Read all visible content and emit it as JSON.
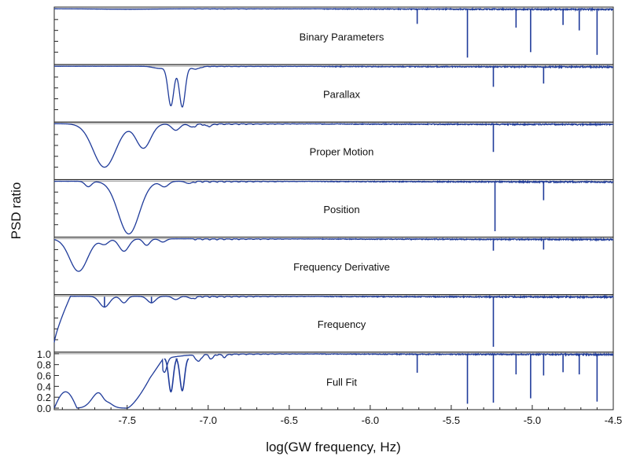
{
  "chart_data": {
    "type": "line",
    "xlabel": "log(GW frequency, Hz)",
    "ylabel": "PSD ratio",
    "xlim": [
      -7.95,
      -4.5
    ],
    "ylim": [
      0,
      1.0
    ],
    "x_ticks": [
      -7.5,
      -7.0,
      -6.5,
      -6.0,
      -5.5,
      -5.0,
      -4.5
    ],
    "x_tick_labels": [
      "-7.5",
      "-7.0",
      "-6.5",
      "-6.0",
      "-5.5",
      "-5.0",
      "-4.5"
    ],
    "y_ticks": [
      0.0,
      0.2,
      0.4,
      0.6,
      0.8,
      1.0
    ],
    "y_tick_labels": [
      "0.0",
      "0.2",
      "0.4",
      "0.6",
      "0.8",
      "1.0"
    ],
    "series_color": "#1f3b9a",
    "reference_line_color": "#999999",
    "reference_line_value": 1.0,
    "grid": false,
    "panels": [
      {
        "name": "Binary Parameters",
        "dips": [
          {
            "x": -5.71,
            "min": 0.72
          },
          {
            "x": -5.4,
            "min": 0.1
          },
          {
            "x": -5.1,
            "min": 0.65
          },
          {
            "x": -5.01,
            "min": 0.2
          },
          {
            "x": -4.81,
            "min": 0.7
          },
          {
            "x": -4.71,
            "min": 0.6
          },
          {
            "x": -4.6,
            "min": 0.15
          }
        ]
      },
      {
        "name": "Parallax",
        "dips": [
          {
            "x": -7.23,
            "min": 0.28
          },
          {
            "x": -7.16,
            "min": 0.25
          },
          {
            "x": -5.24,
            "min": 0.62
          },
          {
            "x": -4.93,
            "min": 0.68
          }
        ]
      },
      {
        "name": "Proper Motion",
        "dips": [
          {
            "x": -7.64,
            "min": 0.2
          },
          {
            "x": -7.4,
            "min": 0.55
          },
          {
            "x": -5.24,
            "min": 0.48
          }
        ]
      },
      {
        "name": "Position",
        "dips": [
          {
            "x": -7.49,
            "min": 0.03
          },
          {
            "x": -5.23,
            "min": 0.08
          },
          {
            "x": -4.93,
            "min": 0.65
          }
        ]
      },
      {
        "name": "Frequency Derivative",
        "dips": [
          {
            "x": -7.8,
            "min": 0.4
          },
          {
            "x": -7.52,
            "min": 0.77
          },
          {
            "x": -5.24,
            "min": 0.78
          },
          {
            "x": -4.93,
            "min": 0.8
          }
        ]
      },
      {
        "name": "Frequency",
        "dips": [
          {
            "x": -7.64,
            "min": 0.8
          },
          {
            "x": -7.35,
            "min": 0.88
          },
          {
            "x": -5.24,
            "min": 0.07
          }
        ],
        "low_freq_rise_start": 0.15
      },
      {
        "name": "Full Fit",
        "dips": [
          {
            "x": -7.23,
            "min": 0.3
          },
          {
            "x": -7.16,
            "min": 0.32
          },
          {
            "x": -5.71,
            "min": 0.65
          },
          {
            "x": -5.4,
            "min": 0.08
          },
          {
            "x": -5.24,
            "min": 0.1
          },
          {
            "x": -5.1,
            "min": 0.62
          },
          {
            "x": -5.01,
            "min": 0.18
          },
          {
            "x": -4.93,
            "min": 0.6
          },
          {
            "x": -4.81,
            "min": 0.66
          },
          {
            "x": -4.71,
            "min": 0.62
          },
          {
            "x": -4.6,
            "min": 0.12
          }
        ],
        "low_freq_bumps": [
          {
            "x": -7.88,
            "peak": 0.3
          },
          {
            "x": -7.67,
            "peak": 0.3
          }
        ]
      }
    ]
  }
}
